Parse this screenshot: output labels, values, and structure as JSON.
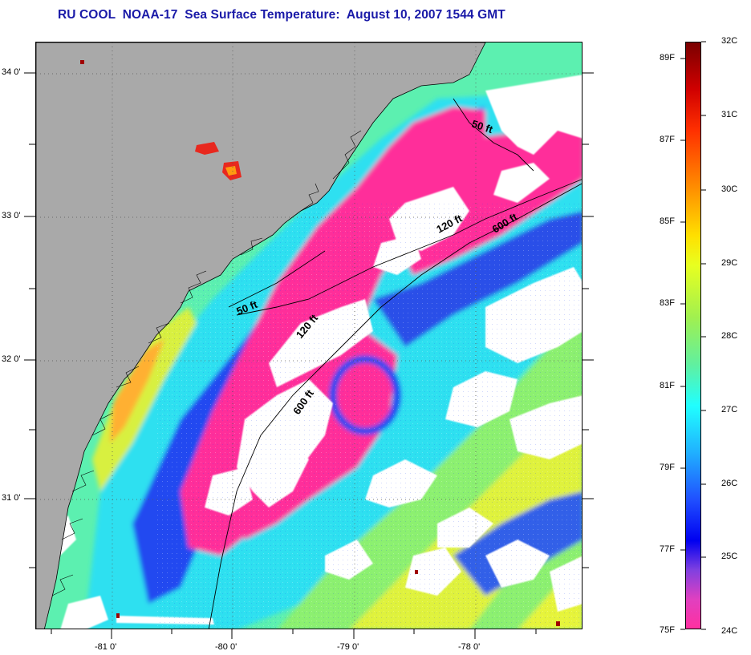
{
  "title": "RU COOL  NOAA-17  Sea Surface Temperature:  August 10, 2007 1544 GMT",
  "map": {
    "lat_ticks": [
      {
        "value": 34.0,
        "label": "34 0'"
      },
      {
        "value": 33.0,
        "label": "33 0'"
      },
      {
        "value": 32.0,
        "label": "32 0'"
      },
      {
        "value": 31.0,
        "label": "31 0'"
      }
    ],
    "lon_ticks": [
      {
        "value": -81.0,
        "label": "-81 0'"
      },
      {
        "value": -80.0,
        "label": "-80 0'"
      },
      {
        "value": -79.0,
        "label": "-79 0'"
      },
      {
        "value": -78.0,
        "label": "-78 0'"
      }
    ],
    "isobaths": [
      {
        "label": "50 ft"
      },
      {
        "label": "120 ft"
      },
      {
        "label": "600 ft"
      },
      {
        "label": "50 ft"
      },
      {
        "label": "120 ft"
      },
      {
        "label": "600 ft"
      }
    ],
    "colors": {
      "land": "#a9a9a9",
      "cloud": "#ffffff",
      "pink": "#ff2d9a",
      "blue": "#1e3cf0",
      "cyan": "#22e6f0",
      "green": "#7ef08a",
      "yellow": "#e8f53a",
      "orange": "#ffa020",
      "red": "#e8281e"
    }
  },
  "colorbar": {
    "celsius_labels": [
      "32C",
      "31C",
      "30C",
      "29C",
      "28C",
      "27C",
      "26C",
      "25C",
      "24C"
    ],
    "fahrenheit_labels": [
      "89F",
      "87F",
      "85F",
      "83F",
      "81F",
      "79F",
      "77F",
      "75F"
    ],
    "gradient": [
      {
        "stop": 0.0,
        "color": "#7a0000"
      },
      {
        "stop": 0.08,
        "color": "#d00000"
      },
      {
        "stop": 0.15,
        "color": "#ff3000"
      },
      {
        "stop": 0.25,
        "color": "#ff9000"
      },
      {
        "stop": 0.33,
        "color": "#ffe000"
      },
      {
        "stop": 0.38,
        "color": "#e8ff20"
      },
      {
        "stop": 0.47,
        "color": "#a0f050"
      },
      {
        "stop": 0.55,
        "color": "#60f0a0"
      },
      {
        "stop": 0.62,
        "color": "#20ffff"
      },
      {
        "stop": 0.7,
        "color": "#20b0ff"
      },
      {
        "stop": 0.78,
        "color": "#2050ff"
      },
      {
        "stop": 0.85,
        "color": "#0000f0"
      },
      {
        "stop": 0.9,
        "color": "#8040e0"
      },
      {
        "stop": 0.95,
        "color": "#e040c0"
      },
      {
        "stop": 1.0,
        "color": "#ff30a0"
      }
    ]
  }
}
